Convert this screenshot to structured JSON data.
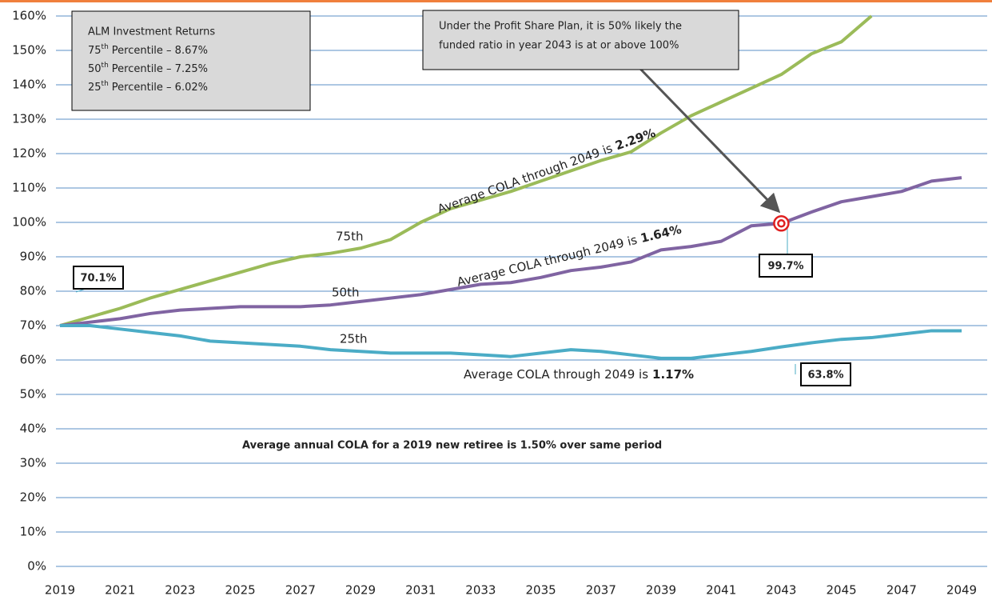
{
  "chart_data": {
    "type": "line",
    "x": [
      2019,
      2020,
      2021,
      2022,
      2023,
      2024,
      2025,
      2026,
      2027,
      2028,
      2029,
      2030,
      2031,
      2032,
      2033,
      2034,
      2035,
      2036,
      2037,
      2038,
      2039,
      2040,
      2041,
      2042,
      2043,
      2044,
      2045,
      2046,
      2047,
      2048,
      2049
    ],
    "series": [
      {
        "name": "75th",
        "color": "#9bbb59",
        "values": [
          70,
          72.5,
          75,
          78,
          80.5,
          83,
          85.5,
          88,
          90,
          91,
          92.5,
          95,
          100,
          104,
          106.5,
          109,
          112,
          115,
          118,
          120.5,
          126,
          131,
          135,
          139,
          143,
          149,
          152.5,
          160,
          null,
          null,
          null
        ]
      },
      {
        "name": "50th",
        "color": "#8064a2",
        "values": [
          70,
          71,
          72,
          73.5,
          74.5,
          75,
          75.5,
          75.5,
          75.5,
          76,
          77,
          78,
          79,
          80.5,
          82,
          82.5,
          84,
          86,
          87,
          88.5,
          92,
          93,
          94.5,
          99,
          99.7,
          103,
          106,
          107.5,
          109,
          112,
          113
        ]
      },
      {
        "name": "25th",
        "color": "#4bacc6",
        "values": [
          70,
          70,
          69,
          68,
          67,
          65.5,
          65,
          64.5,
          64,
          63,
          62.5,
          62,
          62,
          62,
          61.5,
          61,
          62,
          63,
          62.5,
          61.5,
          60.5,
          60.5,
          61.5,
          62.5,
          63.8,
          65,
          66,
          66.5,
          67.5,
          68.5,
          68.5
        ]
      }
    ],
    "xlim": [
      2019,
      2049
    ],
    "xticks": [
      2019,
      2021,
      2023,
      2025,
      2027,
      2029,
      2031,
      2033,
      2035,
      2037,
      2039,
      2041,
      2043,
      2045,
      2047,
      2049
    ],
    "ylim": [
      0,
      160
    ],
    "yticks": [
      {
        "value": 0,
        "label": "0%"
      },
      {
        "value": 10,
        "label": "10%"
      },
      {
        "value": 20,
        "label": "20%"
      },
      {
        "value": 30,
        "label": "30%"
      },
      {
        "value": 40,
        "label": "40%"
      },
      {
        "value": 50,
        "label": "50%"
      },
      {
        "value": 60,
        "label": "60%"
      },
      {
        "value": 70,
        "label": "70%"
      },
      {
        "value": 80,
        "label": "80%"
      },
      {
        "value": 90,
        "label": "90%"
      },
      {
        "value": 100,
        "label": "100%"
      },
      {
        "value": 110,
        "label": "110%"
      },
      {
        "value": 120,
        "label": "120%"
      },
      {
        "value": 130,
        "label": "130%"
      },
      {
        "value": 140,
        "label": "140%"
      },
      {
        "value": 150,
        "label": "150%"
      },
      {
        "value": 160,
        "label": "160%"
      }
    ],
    "grid": true,
    "cola_labels": [
      {
        "text": "Average COLA through 2049 is",
        "bold": "2.29%"
      },
      {
        "text": "Average COLA through 2049 is",
        "bold": "1.64%"
      },
      {
        "text": "Average COLA through 2049 is",
        "bold": "1.17%"
      }
    ],
    "point_labels": [
      "70.1%",
      "99.7%",
      "63.8%"
    ],
    "returns_box": {
      "title": "ALM Investment Returns",
      "rows": [
        {
          "rank": "75",
          "suffix": "th",
          "text": "Percentile – 8.67%"
        },
        {
          "rank": "50",
          "suffix": "th",
          "text": "Percentile – 7.25%"
        },
        {
          "rank": "25",
          "suffix": "th",
          "text": "Percentile – 6.02%"
        }
      ]
    },
    "callout": [
      "Under the Profit Share Plan, it is 50% likely the",
      "funded ratio in year 2043 is at or above 100%"
    ],
    "note": "Average annual COLA for a 2019 new retiree is 1.50% over same period"
  }
}
